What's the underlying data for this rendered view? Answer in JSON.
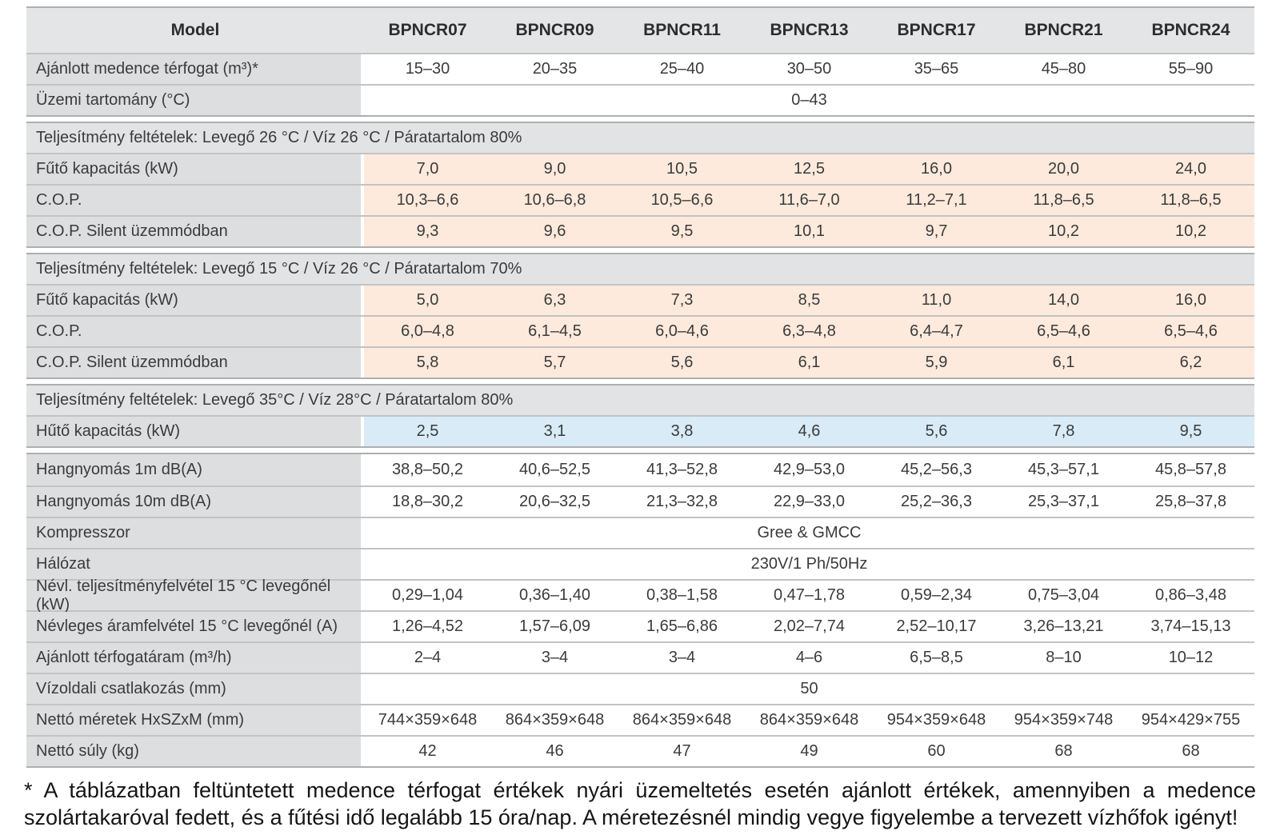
{
  "colors": {
    "header_bg": "#e4e5e7",
    "label_bg": "#dcdee0",
    "section_bg": "#e2e3e5",
    "heating_highlight": "#fdeadc",
    "cooling_highlight": "#d8ebf7",
    "rule_gray": "#aeafb1"
  },
  "table": {
    "header": {
      "label": "Model",
      "columns": [
        "BPNCR07",
        "BPNCR09",
        "BPNCR11",
        "BPNCR13",
        "BPNCR17",
        "BPNCR21",
        "BPNCR24"
      ]
    },
    "rows": [
      {
        "kind": "data",
        "bg": "white",
        "label": "Ajánlott medence térfogat (m³)*",
        "values": [
          "15–30",
          "20–35",
          "25–40",
          "30–50",
          "35–65",
          "45–80",
          "55–90"
        ]
      },
      {
        "kind": "merged",
        "label": "Üzemi tartomány (°C)",
        "value": "0–43"
      },
      {
        "kind": "section",
        "gap_before": true,
        "label": "Teljesítmény feltételek: Levegő 26 °C / Víz 26 °C / Páratartalom 80%"
      },
      {
        "kind": "data",
        "bg": "pink",
        "label": "Fűtő kapacitás (kW)",
        "values": [
          "7,0",
          "9,0",
          "10,5",
          "12,5",
          "16,0",
          "20,0",
          "24,0"
        ]
      },
      {
        "kind": "data",
        "bg": "pink",
        "label": "C.O.P.",
        "values": [
          "10,3–6,6",
          "10,6–6,8",
          "10,5–6,6",
          "11,6–7,0",
          "11,2–7,1",
          "11,8–6,5",
          "11,8–6,5"
        ]
      },
      {
        "kind": "data",
        "bg": "pink",
        "label": "C.O.P. Silent üzemmódban",
        "values": [
          "9,3",
          "9,6",
          "9,5",
          "10,1",
          "9,7",
          "10,2",
          "10,2"
        ]
      },
      {
        "kind": "section",
        "gap_before": true,
        "label": "Teljesítmény feltételek: Levegő 15 °C / Víz 26 °C / Páratartalom 70%"
      },
      {
        "kind": "data",
        "bg": "pink",
        "label": "Fűtő kapacitás (kW)",
        "values": [
          "5,0",
          "6,3",
          "7,3",
          "8,5",
          "11,0",
          "14,0",
          "16,0"
        ]
      },
      {
        "kind": "data",
        "bg": "pink",
        "label": "C.O.P.",
        "values": [
          "6,0–4,8",
          "6,1–4,5",
          "6,0–4,6",
          "6,3–4,8",
          "6,4–4,7",
          "6,5–4,6",
          "6,5–4,6"
        ]
      },
      {
        "kind": "data",
        "bg": "pink",
        "label": "C.O.P. Silent üzemmódban",
        "values": [
          "5,8",
          "5,7",
          "5,6",
          "6,1",
          "5,9",
          "6,1",
          "6,2"
        ]
      },
      {
        "kind": "section",
        "gap_before": true,
        "label": "Teljesítmény feltételek: Levegő 35°C / Víz 28°C / Páratartalom 80%"
      },
      {
        "kind": "data",
        "bg": "blue",
        "label": "Hűtő kapacitás (kW)",
        "values": [
          "2,5",
          "3,1",
          "3,8",
          "4,6",
          "5,6",
          "7,8",
          "9,5"
        ]
      },
      {
        "kind": "data",
        "bg": "white",
        "gap_before": true,
        "label": "Hangnyomás 1m dB(A)",
        "values": [
          "38,8–50,2",
          "40,6–52,5",
          "41,3–52,8",
          "42,9–53,0",
          "45,2–56,3",
          "45,3–57,1",
          "45,8–57,8"
        ]
      },
      {
        "kind": "data",
        "bg": "white",
        "label": "Hangnyomás 10m dB(A)",
        "values": [
          "18,8–30,2",
          "20,6–32,5",
          "21,3–32,8",
          "22,9–33,0",
          "25,2–36,3",
          "25,3–37,1",
          "25,8–37,8"
        ]
      },
      {
        "kind": "merged",
        "label": "Kompresszor",
        "value": "Gree & GMCC"
      },
      {
        "kind": "merged",
        "label": "Hálózat",
        "value": "230V/1 Ph/50Hz"
      },
      {
        "kind": "data",
        "bg": "white",
        "label": "Névl. teljesítményfelvétel 15 °C levegőnél (kW)",
        "values": [
          "0,29–1,04",
          "0,36–1,40",
          "0,38–1,58",
          "0,47–1,78",
          "0,59–2,34",
          "0,75–3,04",
          "0,86–3,48"
        ]
      },
      {
        "kind": "data",
        "bg": "white",
        "label": "Névleges áramfelvétel 15 °C levegőnél (A)",
        "values": [
          "1,26–4,52",
          "1,57–6,09",
          "1,65–6,86",
          "2,02–7,74",
          "2,52–10,17",
          "3,26–13,21",
          "3,74–15,13"
        ]
      },
      {
        "kind": "data",
        "bg": "white",
        "label": "Ajánlott térfogatáram (m³/h)",
        "values": [
          "2–4",
          "3–4",
          "3–4",
          "4–6",
          "6,5–8,5",
          "8–10",
          "10–12"
        ]
      },
      {
        "kind": "merged",
        "label": "Vízoldali csatlakozás (mm)",
        "value": "50"
      },
      {
        "kind": "data",
        "bg": "white",
        "label": "Nettó méretek HxSZxM (mm)",
        "values": [
          "744×359×648",
          "864×359×648",
          "864×359×648",
          "864×359×648",
          "954×359×648",
          "954×359×748",
          "954×429×755"
        ]
      },
      {
        "kind": "data",
        "bg": "white",
        "label": "Nettó súly (kg)",
        "values": [
          "42",
          "46",
          "47",
          "49",
          "60",
          "68",
          "68"
        ]
      }
    ]
  },
  "footnote": "* A táblázatban feltüntetett medence térfogat értékek nyári üzemeltetés esetén ajánlott értékek, amennyiben a medence szolártakaróval fedett, és a fűtési idő legalább 15 óra/nap. A méretezésnél mindig vegye figyelembe a tervezett vízhőfok igényt!"
}
